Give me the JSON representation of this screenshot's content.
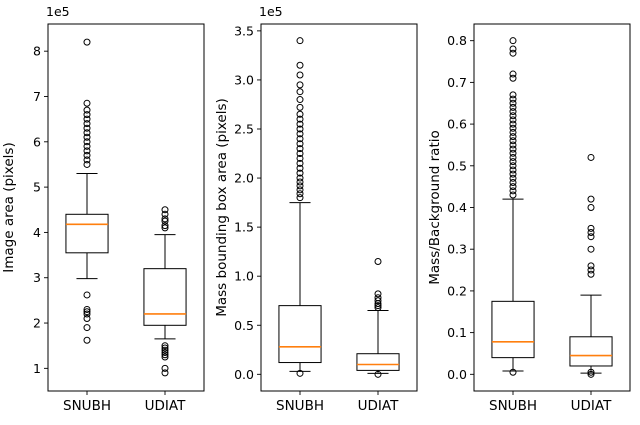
{
  "figure": {
    "title": ""
  },
  "colors": {
    "median": "#ff7f0e",
    "stroke": "#000000",
    "background": "#ffffff"
  },
  "chart_data": [
    {
      "type": "box",
      "ylabel": "Image area (pixels)",
      "scale_label": "1e5",
      "ylim": [
        0.5,
        8.6
      ],
      "yticks": [
        1,
        2,
        3,
        4,
        5,
        6,
        7,
        8
      ],
      "ytick_labels": [
        "1",
        "2",
        "3",
        "4",
        "5",
        "6",
        "7",
        "8"
      ],
      "categories": [
        "SNUBH",
        "UDIAT"
      ],
      "boxes": [
        {
          "category": "SNUBH",
          "whisker_low": 2.98,
          "q1": 3.55,
          "median": 4.18,
          "q3": 4.4,
          "whisker_high": 5.3,
          "outliers": [
            8.2,
            6.85,
            6.7,
            6.6,
            6.5,
            6.4,
            6.3,
            6.2,
            6.1,
            6.0,
            5.9,
            5.8,
            5.7,
            5.6,
            5.5,
            2.62,
            2.3,
            2.25,
            2.2,
            2.1,
            1.9,
            1.62
          ]
        },
        {
          "category": "UDIAT",
          "whisker_low": 1.65,
          "q1": 1.95,
          "median": 2.2,
          "q3": 3.2,
          "whisker_high": 3.95,
          "outliers": [
            4.5,
            4.4,
            4.3,
            4.25,
            4.15,
            4.1,
            1.5,
            1.45,
            1.4,
            1.35,
            1.3,
            1.25,
            1.0,
            0.9
          ]
        }
      ]
    },
    {
      "type": "box",
      "ylabel": "Mass bounding box area (pixels)",
      "scale_label": "1e5",
      "ylim": [
        -0.17,
        3.57
      ],
      "yticks": [
        0.0,
        0.5,
        1.0,
        1.5,
        2.0,
        2.5,
        3.0,
        3.5
      ],
      "ytick_labels": [
        "0.0",
        "0.5",
        "1.0",
        "1.5",
        "2.0",
        "2.5",
        "3.0",
        "3.5"
      ],
      "categories": [
        "SNUBH",
        "UDIAT"
      ],
      "boxes": [
        {
          "category": "SNUBH",
          "whisker_low": 0.03,
          "q1": 0.12,
          "median": 0.28,
          "q3": 0.7,
          "whisker_high": 1.75,
          "outliers": [
            3.4,
            3.15,
            3.05,
            2.95,
            2.88,
            2.8,
            2.72,
            2.65,
            2.6,
            2.55,
            2.5,
            2.45,
            2.4,
            2.35,
            2.3,
            2.25,
            2.2,
            2.15,
            2.1,
            2.05,
            2.0,
            1.96,
            1.92,
            1.88,
            1.84,
            1.8,
            0.01
          ]
        },
        {
          "category": "UDIAT",
          "whisker_low": 0.01,
          "q1": 0.04,
          "median": 0.1,
          "q3": 0.21,
          "whisker_high": 0.65,
          "outliers": [
            1.15,
            0.82,
            0.78,
            0.75,
            0.72,
            0.7,
            0.68,
            0.0
          ]
        }
      ]
    },
    {
      "type": "box",
      "ylabel": "Mass/Background ratio",
      "scale_label": "",
      "ylim": [
        -0.04,
        0.84
      ],
      "yticks": [
        0.0,
        0.1,
        0.2,
        0.3,
        0.4,
        0.5,
        0.6,
        0.7,
        0.8
      ],
      "ytick_labels": [
        "0.0",
        "0.1",
        "0.2",
        "0.3",
        "0.4",
        "0.5",
        "0.6",
        "0.7",
        "0.8"
      ],
      "categories": [
        "SNUBH",
        "UDIAT"
      ],
      "boxes": [
        {
          "category": "SNUBH",
          "whisker_low": 0.008,
          "q1": 0.04,
          "median": 0.078,
          "q3": 0.175,
          "whisker_high": 0.42,
          "outliers": [
            0.8,
            0.78,
            0.77,
            0.72,
            0.71,
            0.67,
            0.66,
            0.65,
            0.64,
            0.63,
            0.62,
            0.61,
            0.6,
            0.59,
            0.58,
            0.57,
            0.56,
            0.55,
            0.54,
            0.53,
            0.52,
            0.51,
            0.5,
            0.49,
            0.48,
            0.47,
            0.46,
            0.45,
            0.44,
            0.43,
            0.005
          ]
        },
        {
          "category": "UDIAT",
          "whisker_low": 0.003,
          "q1": 0.02,
          "median": 0.045,
          "q3": 0.09,
          "whisker_high": 0.19,
          "outliers": [
            0.52,
            0.42,
            0.4,
            0.35,
            0.34,
            0.33,
            0.3,
            0.26,
            0.25,
            0.24,
            0.005,
            0.0
          ]
        }
      ]
    }
  ]
}
